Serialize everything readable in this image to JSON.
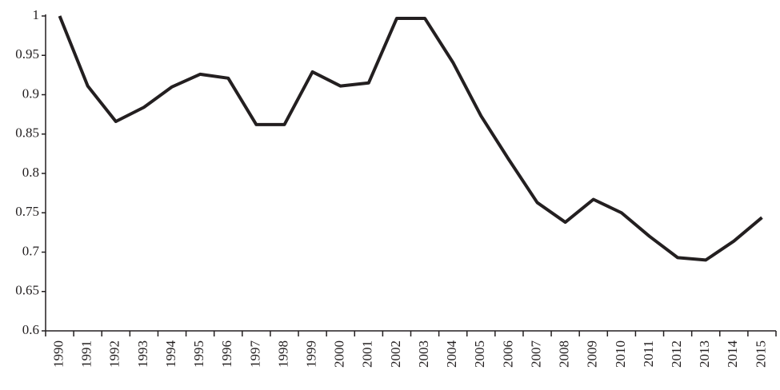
{
  "chart_data": {
    "type": "line",
    "categories": [
      "1990",
      "1991",
      "1992",
      "1993",
      "1994",
      "1995",
      "1996",
      "1997",
      "1998",
      "1999",
      "2000",
      "2001",
      "2002",
      "2003",
      "2004",
      "2005",
      "2006",
      "2007",
      "2008",
      "2009",
      "2010",
      "2011",
      "2012",
      "2013",
      "2014",
      "2015"
    ],
    "values": [
      1.0,
      0.911,
      0.866,
      0.884,
      0.91,
      0.926,
      0.921,
      0.862,
      0.862,
      0.929,
      0.911,
      0.915,
      0.997,
      0.997,
      0.941,
      0.873,
      0.817,
      0.763,
      0.738,
      0.767,
      0.75,
      0.72,
      0.693,
      0.69,
      0.714,
      0.744
    ],
    "color": "#231f20",
    "ylim": [
      0.6,
      1
    ],
    "yticks": [
      0.6,
      0.65,
      0.7,
      0.75,
      0.8,
      0.85,
      0.9,
      0.95,
      1
    ],
    "grid": false
  }
}
